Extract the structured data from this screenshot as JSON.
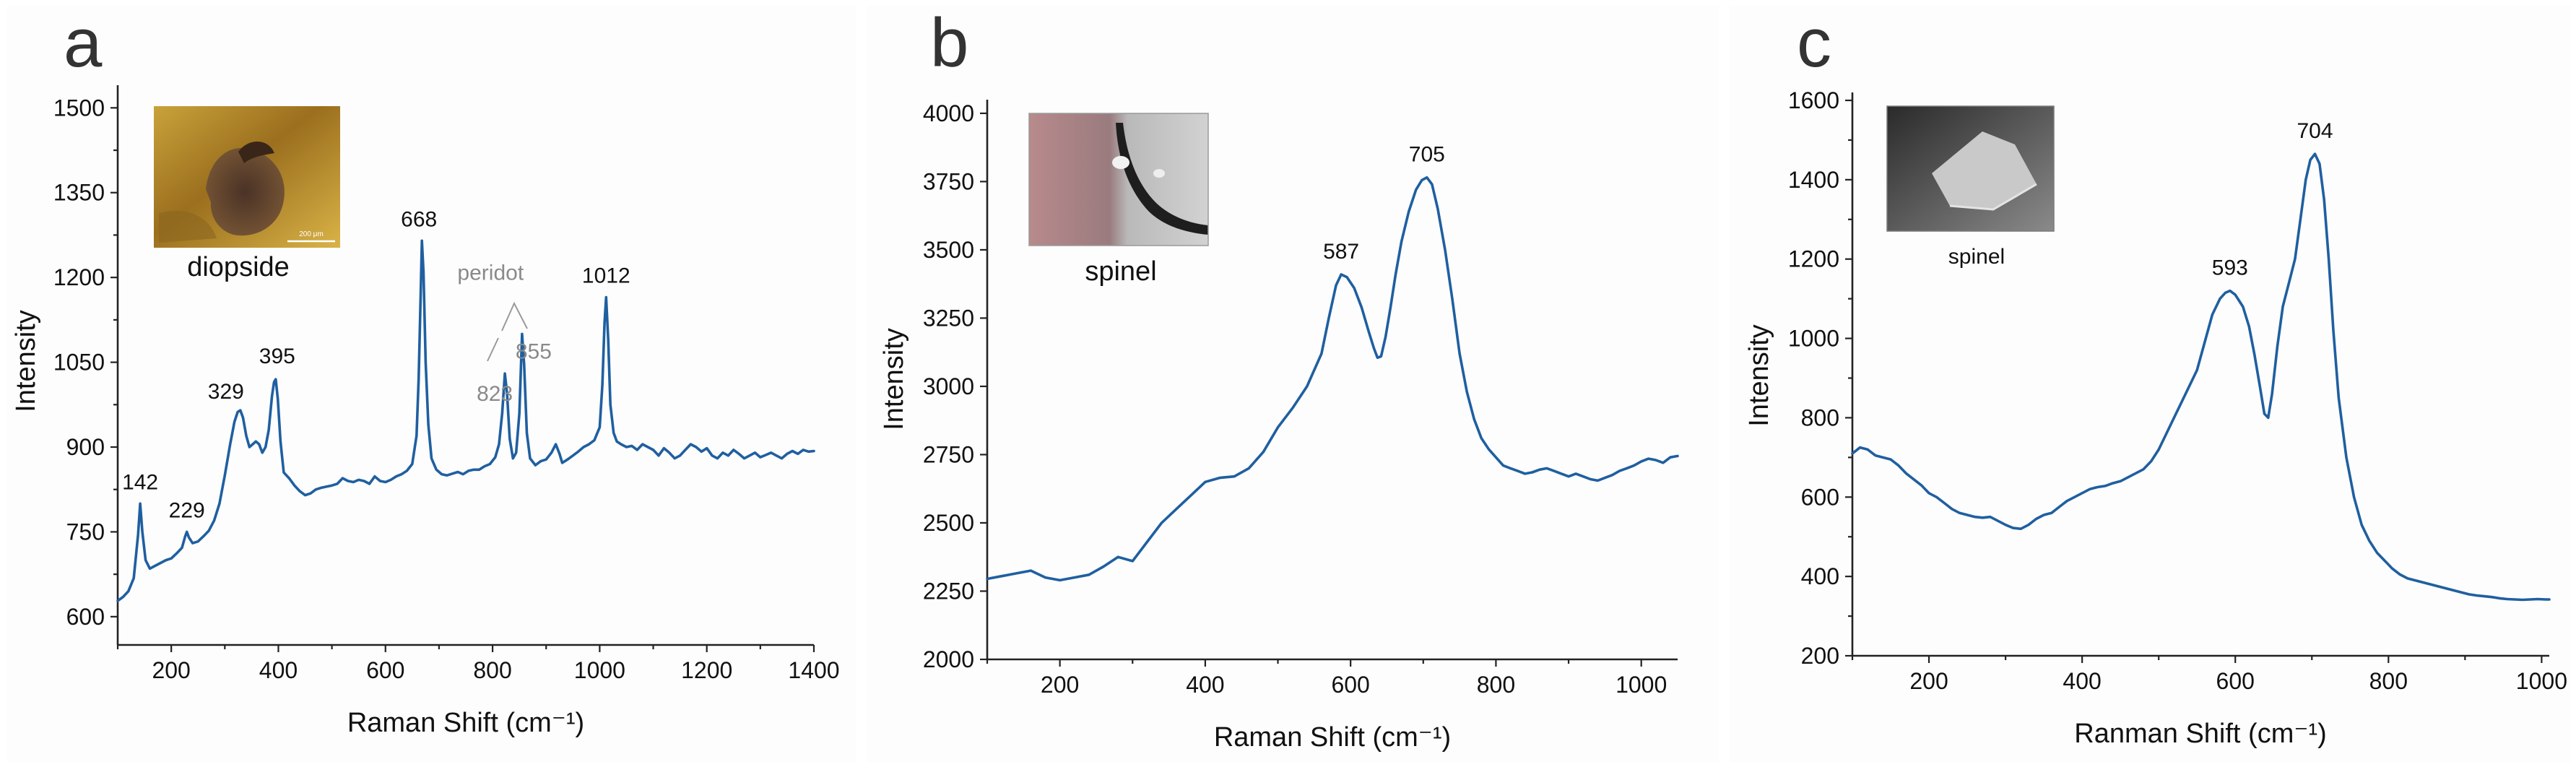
{
  "chart_data": [
    {
      "panel_label": "a",
      "type": "line",
      "xlabel": "Raman Shift (cm⁻¹)",
      "ylabel": "Intensity",
      "xlim": [
        100,
        1400
      ],
      "ylim": [
        550,
        1540
      ],
      "xticks": [
        200,
        400,
        600,
        800,
        1000,
        1200,
        1400
      ],
      "yticks": [
        600,
        750,
        900,
        1050,
        1200,
        1350,
        1500
      ],
      "inset": {
        "caption": "diopside",
        "scale_text": "200 μm",
        "style": "optical-micrograph"
      },
      "annotations": [
        {
          "text": "142",
          "x": 142,
          "y": 800
        },
        {
          "text": "229",
          "x": 229,
          "y": 750
        },
        {
          "text": "329",
          "x": 329,
          "y": 965
        },
        {
          "text": "395",
          "x": 395,
          "y": 1020
        },
        {
          "text": "668",
          "x": 668,
          "y": 1265
        },
        {
          "text": "peridot",
          "x": 857,
          "y": 1170,
          "group": "peridot"
        },
        {
          "text": "823",
          "x": 823,
          "y": 1030,
          "group": "peridot"
        },
        {
          "text": "855",
          "x": 855,
          "y": 1100,
          "group": "peridot"
        },
        {
          "text": "1012",
          "x": 1012,
          "y": 1165
        }
      ],
      "series": [
        {
          "name": "diopside",
          "x": [
            100,
            110,
            120,
            130,
            138,
            142,
            146,
            152,
            160,
            170,
            180,
            190,
            200,
            210,
            220,
            226,
            229,
            233,
            240,
            250,
            260,
            270,
            280,
            290,
            300,
            310,
            318,
            324,
            329,
            334,
            340,
            346,
            352,
            358,
            364,
            370,
            376,
            382,
            388,
            392,
            395,
            399,
            404,
            410,
            420,
            430,
            440,
            450,
            460,
            470,
            480,
            490,
            500,
            510,
            520,
            530,
            540,
            550,
            560,
            570,
            580,
            590,
            600,
            610,
            620,
            630,
            640,
            650,
            658,
            662,
            666,
            668,
            671,
            675,
            680,
            686,
            695,
            705,
            715,
            725,
            735,
            745,
            755,
            765,
            775,
            785,
            795,
            805,
            812,
            818,
            823,
            827,
            832,
            838,
            844,
            850,
            855,
            859,
            864,
            870,
            880,
            890,
            900,
            910,
            918,
            925,
            930,
            940,
            950,
            960,
            970,
            980,
            990,
            1000,
            1005,
            1009,
            1012,
            1016,
            1020,
            1026,
            1032,
            1040,
            1050,
            1060,
            1070,
            1080,
            1090,
            1100,
            1110,
            1120,
            1130,
            1140,
            1150,
            1160,
            1170,
            1180,
            1190,
            1200,
            1210,
            1220,
            1230,
            1240,
            1250,
            1260,
            1270,
            1280,
            1290,
            1300,
            1310,
            1320,
            1330,
            1340,
            1350,
            1360,
            1370,
            1380,
            1390,
            1400
          ],
          "y": [
            628,
            635,
            645,
            668,
            745,
            800,
            750,
            700,
            685,
            690,
            695,
            700,
            703,
            712,
            722,
            742,
            750,
            740,
            730,
            733,
            742,
            752,
            770,
            800,
            850,
            905,
            945,
            962,
            965,
            952,
            920,
            900,
            905,
            910,
            905,
            890,
            900,
            930,
            990,
            1015,
            1020,
            985,
            910,
            855,
            845,
            832,
            822,
            815,
            818,
            825,
            828,
            830,
            832,
            835,
            845,
            840,
            838,
            842,
            840,
            835,
            848,
            840,
            838,
            842,
            848,
            852,
            858,
            870,
            920,
            1020,
            1180,
            1265,
            1210,
            1050,
            940,
            880,
            860,
            852,
            850,
            853,
            856,
            852,
            858,
            860,
            860,
            866,
            870,
            882,
            905,
            960,
            1030,
            995,
            915,
            880,
            890,
            960,
            1100,
            1045,
            925,
            880,
            868,
            875,
            878,
            890,
            905,
            888,
            872,
            878,
            885,
            892,
            900,
            905,
            912,
            935,
            1010,
            1120,
            1165,
            1090,
            975,
            925,
            910,
            905,
            900,
            902,
            895,
            905,
            900,
            895,
            885,
            898,
            890,
            880,
            885,
            895,
            905,
            900,
            892,
            898,
            885,
            880,
            890,
            885,
            895,
            888,
            880,
            885,
            890,
            882,
            886,
            890,
            885,
            880,
            888,
            893,
            888,
            895,
            892,
            893
          ]
        }
      ]
    },
    {
      "panel_label": "b",
      "type": "line",
      "xlabel": "Raman Shift (cm⁻¹)",
      "ylabel": "Intensity",
      "xlim": [
        100,
        1050
      ],
      "ylim": [
        2000,
        4050
      ],
      "xticks": [
        200,
        400,
        600,
        800,
        1000
      ],
      "yticks": [
        2000,
        2250,
        2500,
        2750,
        3000,
        3250,
        3500,
        3750,
        4000
      ],
      "inset": {
        "caption": "spinel",
        "style": "micrograph-gray-pink"
      },
      "annotations": [
        {
          "text": "587",
          "x": 587,
          "y": 3410
        },
        {
          "text": "705",
          "x": 705,
          "y": 3765
        }
      ],
      "series": [
        {
          "name": "spinel",
          "x": [
            100,
            120,
            140,
            160,
            180,
            200,
            220,
            240,
            260,
            280,
            300,
            320,
            340,
            360,
            380,
            400,
            420,
            440,
            460,
            480,
            500,
            520,
            540,
            560,
            570,
            580,
            587,
            595,
            605,
            615,
            625,
            632,
            637,
            642,
            648,
            655,
            662,
            670,
            680,
            690,
            698,
            705,
            712,
            720,
            730,
            740,
            750,
            760,
            770,
            780,
            790,
            800,
            810,
            820,
            830,
            840,
            850,
            860,
            870,
            880,
            890,
            900,
            910,
            920,
            930,
            940,
            950,
            960,
            970,
            980,
            990,
            1000,
            1010,
            1020,
            1030,
            1040,
            1050
          ],
          "y": [
            2295,
            2305,
            2315,
            2325,
            2300,
            2290,
            2300,
            2310,
            2340,
            2375,
            2360,
            2430,
            2500,
            2550,
            2600,
            2650,
            2665,
            2670,
            2700,
            2760,
            2850,
            2920,
            3000,
            3120,
            3250,
            3370,
            3410,
            3400,
            3360,
            3290,
            3200,
            3140,
            3105,
            3110,
            3180,
            3290,
            3410,
            3530,
            3640,
            3720,
            3755,
            3765,
            3740,
            3650,
            3500,
            3320,
            3120,
            2980,
            2880,
            2810,
            2770,
            2740,
            2710,
            2700,
            2690,
            2680,
            2685,
            2695,
            2700,
            2690,
            2680,
            2670,
            2680,
            2670,
            2660,
            2655,
            2665,
            2675,
            2690,
            2700,
            2710,
            2725,
            2735,
            2730,
            2720,
            2740,
            2745
          ]
        }
      ]
    },
    {
      "panel_label": "c",
      "type": "line",
      "xlabel": "Ranman Shift (cm⁻¹)",
      "ylabel": "Intensity",
      "xlim": [
        100,
        1010
      ],
      "ylim": [
        200,
        1620
      ],
      "xticks": [
        200,
        400,
        600,
        800,
        1000
      ],
      "yticks": [
        200,
        400,
        600,
        800,
        1000,
        1200,
        1400,
        1600
      ],
      "inset": {
        "caption": "spinel",
        "style": "micrograph-gray"
      },
      "annotations": [
        {
          "text": "593",
          "x": 593,
          "y": 1120
        },
        {
          "text": "704",
          "x": 704,
          "y": 1465
        }
      ],
      "series": [
        {
          "name": "spinel",
          "x": [
            100,
            110,
            120,
            130,
            140,
            150,
            160,
            170,
            180,
            190,
            200,
            210,
            220,
            230,
            240,
            250,
            260,
            270,
            280,
            290,
            300,
            310,
            320,
            330,
            340,
            350,
            360,
            370,
            380,
            390,
            400,
            410,
            420,
            430,
            440,
            450,
            460,
            470,
            480,
            490,
            500,
            510,
            520,
            530,
            540,
            550,
            560,
            570,
            580,
            587,
            593,
            600,
            610,
            618,
            625,
            632,
            638,
            643,
            648,
            655,
            662,
            670,
            678,
            685,
            692,
            698,
            704,
            710,
            716,
            722,
            728,
            735,
            745,
            755,
            765,
            775,
            785,
            795,
            805,
            815,
            825,
            835,
            845,
            855,
            865,
            875,
            885,
            895,
            905,
            915,
            925,
            935,
            945,
            955,
            965,
            975,
            985,
            995,
            1005,
            1010
          ],
          "y": [
            710,
            725,
            720,
            705,
            700,
            695,
            680,
            660,
            645,
            630,
            610,
            600,
            585,
            570,
            560,
            555,
            550,
            548,
            550,
            540,
            530,
            522,
            520,
            530,
            545,
            555,
            560,
            575,
            590,
            600,
            610,
            620,
            625,
            628,
            635,
            640,
            650,
            660,
            670,
            690,
            720,
            760,
            800,
            840,
            880,
            920,
            990,
            1060,
            1100,
            1115,
            1120,
            1110,
            1080,
            1030,
            960,
            880,
            810,
            800,
            860,
            980,
            1080,
            1140,
            1200,
            1300,
            1400,
            1450,
            1465,
            1440,
            1350,
            1200,
            1020,
            850,
            700,
            600,
            530,
            490,
            460,
            440,
            420,
            405,
            395,
            390,
            385,
            380,
            375,
            370,
            365,
            360,
            355,
            352,
            350,
            348,
            345,
            343,
            342,
            341,
            342,
            343,
            342,
            342
          ]
        }
      ]
    }
  ]
}
